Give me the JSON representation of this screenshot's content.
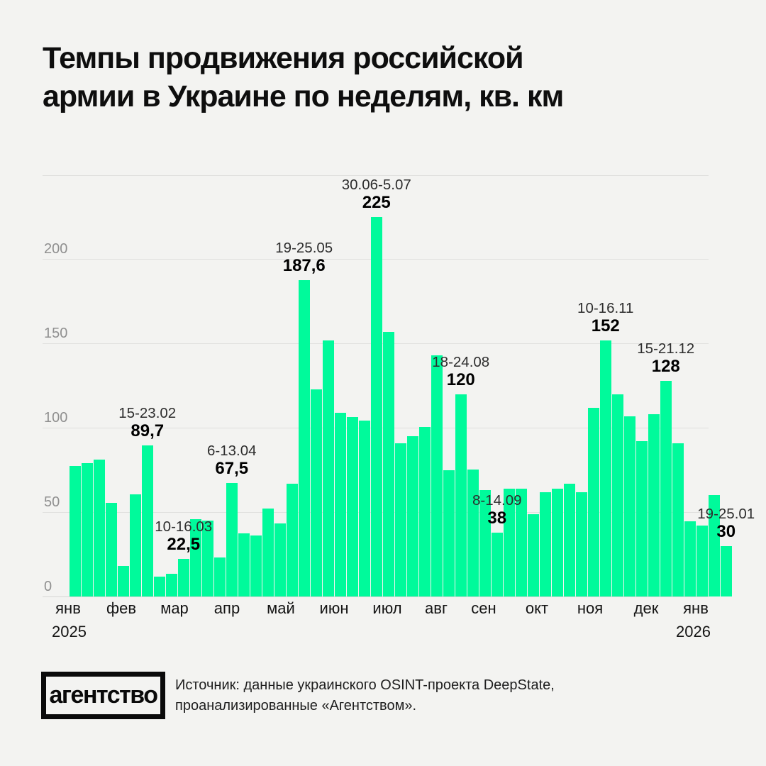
{
  "header": {
    "line1": "Темпы продвижения российской",
    "line2": "армии в Украине по неделям, кв. км"
  },
  "chart_data": {
    "type": "bar",
    "title": "Темпы продвижения российской армии в Украине по неделям, кв. км",
    "unit": "кв. км",
    "bar_color": "#00fa9b",
    "ylim": [
      0,
      250
    ],
    "y_ticks": [
      0,
      50,
      100,
      150,
      200
    ],
    "grid": true,
    "months": [
      "янв",
      "фев",
      "мар",
      "апр",
      "май",
      "июн",
      "июл",
      "авг",
      "сен",
      "окт",
      "ноя",
      "дек",
      "янв"
    ],
    "year_start": "2025",
    "year_end": "2026",
    "values": [
      77.5,
      79,
      81,
      55.5,
      18,
      60.5,
      89.7,
      12,
      13.5,
      22.5,
      46,
      45,
      23,
      67.5,
      37.5,
      36,
      52,
      43.5,
      67,
      187.6,
      123,
      152,
      109,
      106.5,
      104.5,
      225,
      157,
      91,
      95,
      100.5,
      143,
      75,
      120,
      75.5,
      63,
      38,
      64,
      64,
      49,
      62,
      64,
      67,
      62,
      112,
      152,
      120,
      107,
      92,
      108,
      128,
      91,
      44.5,
      42,
      60,
      30
    ],
    "annotations": [
      {
        "index": 6,
        "date": "15-23.02",
        "value_label": "89,7"
      },
      {
        "index": 9,
        "date": "10-16.03",
        "value_label": "22,5"
      },
      {
        "index": 13,
        "date": "6-13.04",
        "value_label": "67,5"
      },
      {
        "index": 19,
        "date": "19-25.05",
        "value_label": "187,6"
      },
      {
        "index": 25,
        "date": "30.06-5.07",
        "value_label": "225"
      },
      {
        "index": 32,
        "date": "18-24.08",
        "value_label": "120"
      },
      {
        "index": 35,
        "date": "8-14.09",
        "value_label": "38"
      },
      {
        "index": 44,
        "date": "10-16.11",
        "value_label": "152"
      },
      {
        "index": 49,
        "date": "15-21.12",
        "value_label": "128"
      },
      {
        "index": 54,
        "date": "19-25.01",
        "value_label": "30"
      }
    ]
  },
  "footer": {
    "logo_text": "агентство",
    "source_line1": "Источник: данные украинского OSINT-проекта DeepState,",
    "source_line2": "проанализированные «Агентством»."
  }
}
